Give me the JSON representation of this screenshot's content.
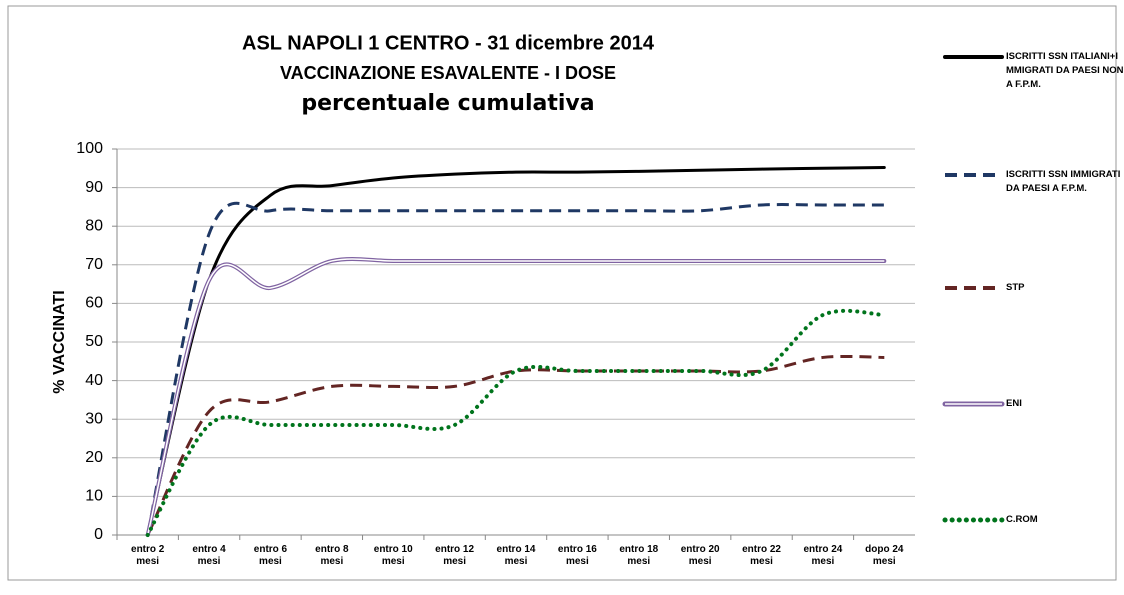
{
  "chart_data": {
    "type": "line",
    "title": [
      "ASL NAPOLI 1 CENTRO - 31 dicembre 2014",
      "VACCINAZIONE ESAVALENTE  - I DOSE",
      "percentuale cumulativa"
    ],
    "y_label": "% VACCINATI",
    "categories": [
      "entro 2 mesi",
      "entro 4 mesi",
      "entro 6 mesi",
      "entro 8 mesi",
      "entro 10 mesi",
      "entro 12 mesi",
      "entro 14 mesi",
      "entro 16 mesi",
      "entro 18 mesi",
      "entro 20 mesi",
      "entro 22 mesi",
      "entro 24 mesi",
      "dopo 24 mesi"
    ],
    "series": [
      {
        "name": "ISCRITTI SSN ITALIANI+IMMIGRATI DA PAESI NON A F.P.M.",
        "color": "#000000",
        "style": "solid",
        "values": [
          0,
          66,
          88,
          90.5,
          92.5,
          93.5,
          94,
          94,
          94.2,
          94.5,
          94.8,
          95,
          95.2
        ]
      },
      {
        "name": "ISCRITTI SSN IMMIGRATI DA PAESI A F.P.M.",
        "color": "#1f3864",
        "style": "dashed",
        "values": [
          0,
          78,
          84,
          84,
          84,
          84,
          84,
          84,
          84,
          84,
          85.5,
          85.5,
          85.5
        ]
      },
      {
        "name": "STP",
        "color": "#632523",
        "style": "dashed",
        "values": [
          0,
          32,
          34.5,
          38.5,
          38.5,
          38.5,
          42.5,
          42.5,
          42.5,
          42.5,
          42.5,
          46,
          46
        ]
      },
      {
        "name": "ENI",
        "color": "#8064a2",
        "style": "double",
        "values": [
          0,
          66,
          64,
          71,
          71,
          71,
          71,
          71,
          71,
          71,
          71,
          71,
          71
        ]
      },
      {
        "name": "C.ROM",
        "color": "#00741c",
        "style": "dotted",
        "values": [
          0,
          28.5,
          28.5,
          28.5,
          28.5,
          28.5,
          42.5,
          42.5,
          42.5,
          42.5,
          42.5,
          57,
          57
        ]
      }
    ],
    "ylim": [
      0,
      100
    ],
    "yticks": [
      0,
      10,
      20,
      30,
      40,
      50,
      60,
      70,
      80,
      90,
      100
    ],
    "grid": true
  }
}
